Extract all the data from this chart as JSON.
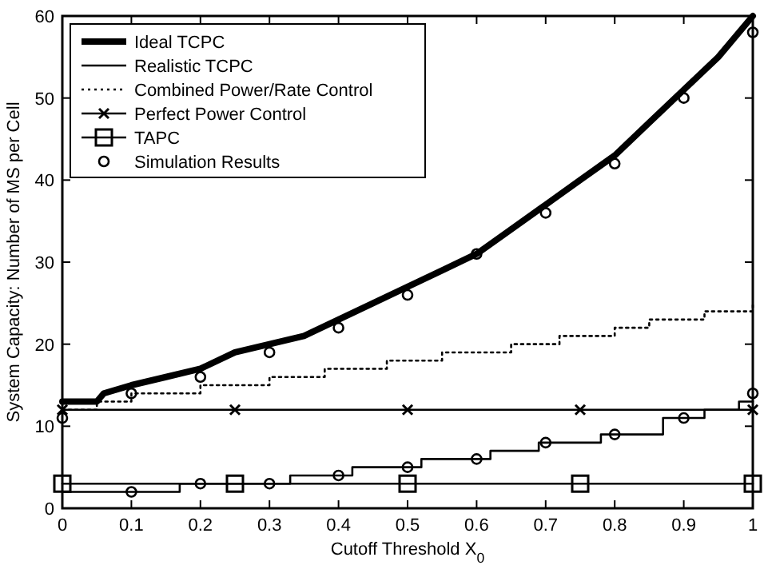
{
  "chart_data": {
    "type": "line",
    "xlabel": "Cutoff Threshold X$_{0}$",
    "ylabel": "System Capacity: Number of MS per Cell",
    "xlim": [
      0,
      1
    ],
    "ylim": [
      0,
      60
    ],
    "xticks": [
      0,
      0.1,
      0.2,
      0.3,
      0.4,
      0.5,
      0.6,
      0.7,
      0.8,
      0.9,
      1
    ],
    "yticks": [
      0,
      10,
      20,
      30,
      40,
      50,
      60
    ],
    "grid": false,
    "legend": "top left",
    "series": [
      {
        "name": "Ideal TCPC",
        "color": "#000000",
        "line_style": "solid",
        "marker": "none",
        "x": [
          0,
          0.05,
          0.06,
          0.1,
          0.15,
          0.2,
          0.25,
          0.3,
          0.35,
          0.4,
          0.45,
          0.5,
          0.55,
          0.6,
          0.65,
          0.7,
          0.75,
          0.8,
          0.85,
          0.9,
          0.95,
          1
        ],
        "values": [
          13,
          13,
          14,
          15,
          16,
          17,
          19,
          20,
          21,
          23,
          25,
          27,
          29,
          31,
          34,
          37,
          40,
          43,
          47,
          51,
          55,
          60
        ]
      },
      {
        "name": "Realistic TCPC",
        "type": "step",
        "color": "#000000",
        "line_style": "solid",
        "marker": "none",
        "x": [
          0,
          0.17,
          0.33,
          0.42,
          0.5,
          0.52,
          0.62,
          0.69,
          0.78,
          0.87,
          0.93,
          0.98,
          1
        ],
        "values": [
          2,
          3,
          4,
          5,
          5,
          6,
          7,
          8,
          9,
          11,
          12,
          13,
          13
        ]
      },
      {
        "name": "Combined Power/Rate Control",
        "type": "step",
        "color": "#000000",
        "line_style": "dotted",
        "marker": "none",
        "x": [
          0,
          0.05,
          0.1,
          0.2,
          0.3,
          0.38,
          0.47,
          0.55,
          0.65,
          0.72,
          0.8,
          0.85,
          0.93,
          1
        ],
        "values": [
          12,
          13,
          14,
          15,
          16,
          17,
          18,
          19,
          20,
          21,
          22,
          23,
          24,
          25
        ]
      },
      {
        "name": "Perfect Power Control",
        "color": "#000000",
        "line_style": "solid",
        "marker": "cross",
        "x": [
          0,
          0.25,
          0.5,
          0.75,
          1
        ],
        "values": [
          12,
          12,
          12,
          12,
          12
        ]
      },
      {
        "name": "TAPC",
        "color": "#000000",
        "line_style": "solid",
        "marker": "square",
        "x": [
          0,
          0.25,
          0.5,
          0.75,
          1
        ],
        "values": [
          3,
          3,
          3,
          3,
          3
        ]
      },
      {
        "name": "Simulation Results",
        "type": "scatter",
        "color": "#000000",
        "marker": "circle",
        "x": [
          0,
          0.1,
          0.2,
          0.3,
          0.4,
          0.5,
          0.6,
          0.7,
          0.8,
          0.9,
          1,
          0.1,
          0.2,
          0.3,
          0.4,
          0.5,
          0.6,
          0.7,
          0.8,
          0.9,
          1
        ],
        "values": [
          11,
          14,
          16,
          19,
          22,
          26,
          31,
          36,
          42,
          50,
          58,
          2,
          3,
          3,
          4,
          5,
          6,
          8,
          9,
          11,
          14
        ]
      }
    ]
  }
}
